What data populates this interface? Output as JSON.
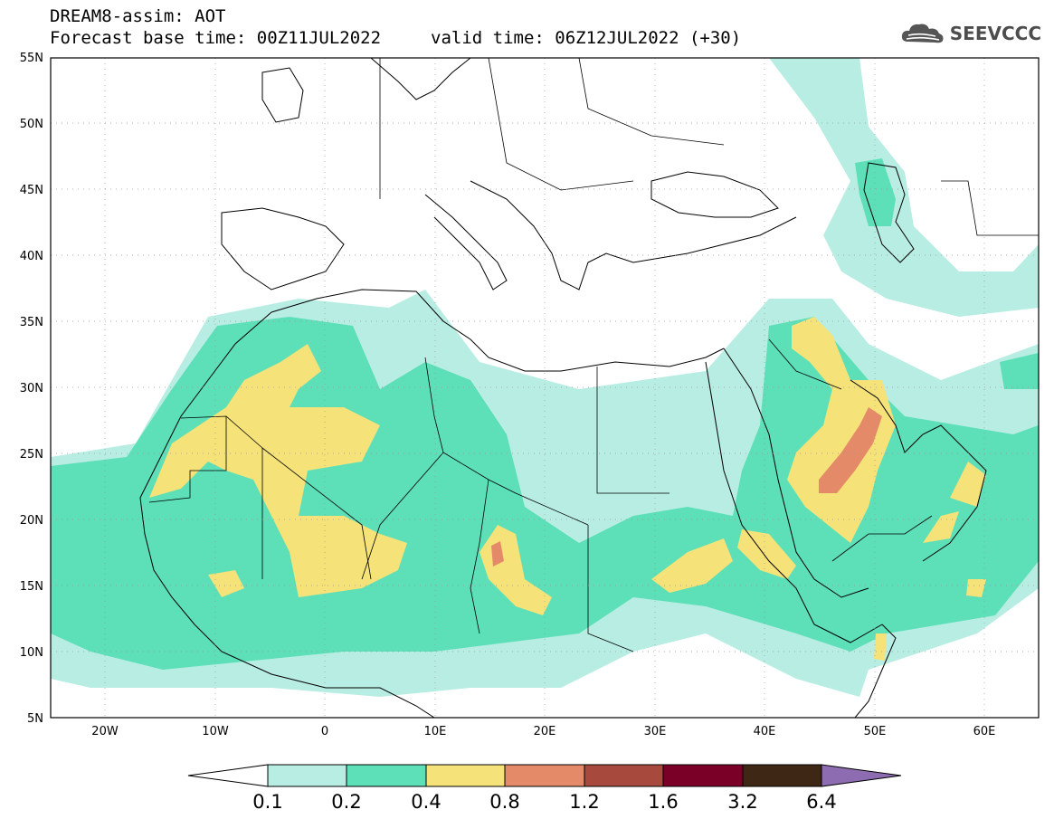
{
  "title": {
    "line1": "DREAM8-assim: AOT",
    "base_time": "Forecast base time: 00Z11JUL2022",
    "valid_time": "valid time: 06Z12JUL2022 (+30)"
  },
  "logo": {
    "text": "SEEVCCC",
    "icon": "cloud-icon"
  },
  "map": {
    "region": "North Africa / Mediterranean / Middle East",
    "lon_range": [
      -25,
      65
    ],
    "lat_range": [
      5,
      55
    ],
    "lat_ticks": [
      "55N",
      "50N",
      "45N",
      "40N",
      "35N",
      "30N",
      "25N",
      "20N",
      "15N",
      "10N",
      "5N"
    ],
    "lon_ticks": [
      "20W",
      "10W",
      "0",
      "10E",
      "20E",
      "30E",
      "40E",
      "50E",
      "60E"
    ],
    "grid": true
  },
  "colorbar": {
    "levels": [
      "0.1",
      "0.2",
      "0.4",
      "0.8",
      "1.2",
      "1.6",
      "3.2",
      "6.4"
    ],
    "colors": [
      "#ffffff",
      "#b8ede3",
      "#5ddfb8",
      "#f5e278",
      "#e58a68",
      "#a8493d",
      "#7a0028",
      "#3f2715",
      "#8d6cb1"
    ]
  }
}
